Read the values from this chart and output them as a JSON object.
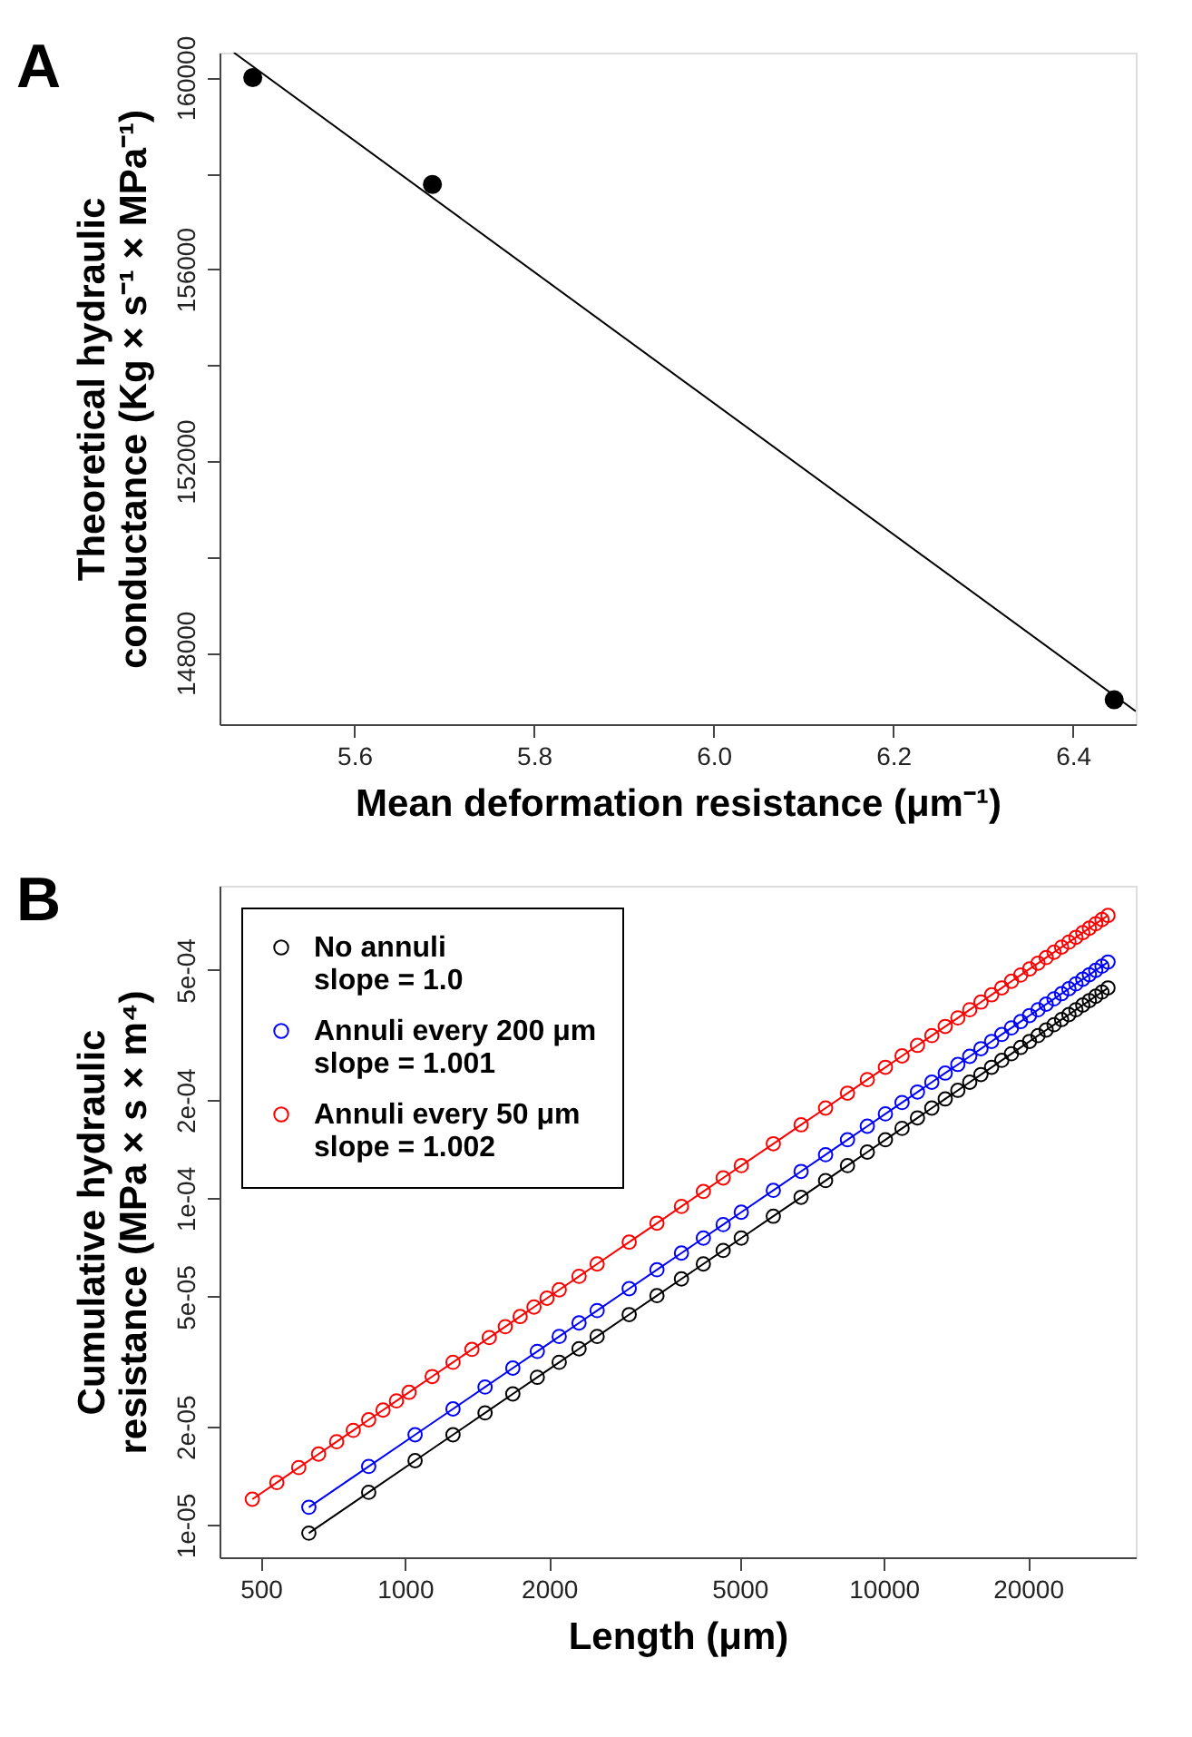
{
  "chart_data": [
    {
      "type": "scatter",
      "xlabel": "Mean deformation resistance (μm⁻¹)",
      "ylabel": "Theoretical hydraulic\nconductance  (Kg  × s⁻¹ × MPa⁻¹)",
      "annotations": [
        "A"
      ],
      "marker": "circle",
      "xlim": [
        5.45,
        6.47
      ],
      "ylim": [
        146510,
        160520
      ],
      "xticks": [
        5.6,
        5.8,
        {
          "value": 6.0,
          "label": "6.0"
        },
        6.2,
        6.4
      ],
      "yticks": [
        148000,
        {
          "value": 150000,
          "label": null
        },
        152000,
        {
          "value": 154000,
          "label": null
        },
        156000,
        {
          "value": 158000,
          "label": null
        },
        160000
      ],
      "series": [
        {
          "color": "#000000",
          "x": [
            5.487,
            5.687,
            6.446
          ],
          "values": [
            160000,
            157770,
            147020
          ]
        },
        {
          "type": "line",
          "marker": "none",
          "color": "#000000",
          "x": [
            5.466,
            6.47
          ],
          "values": [
            160520,
            146780
          ]
        }
      ]
    },
    {
      "type": "line",
      "xlabel": "Length (μm)",
      "ylabel": "Cumulative hydraulic\nresistance (MPa  × s × m⁴)",
      "annotations": [
        "B"
      ],
      "marker": "circle",
      "log": "xy",
      "legend": "top left",
      "xlim": [
        410,
        33600
      ],
      "ylim": [
        7.97e-06,
        0.000906
      ],
      "xticks": [
        500,
        1000,
        2000,
        5000,
        10000,
        20000
      ],
      "yticks": [
        {
          "value": 1e-05,
          "label": "1e-05"
        },
        {
          "value": 2e-05,
          "label": "2e-05"
        },
        {
          "value": 5e-05,
          "label": "5e-05"
        },
        {
          "value": 0.0001,
          "label": "1e-04"
        },
        {
          "value": 0.0002,
          "label": "2e-04"
        },
        {
          "value": 0.0005,
          "label": "5e-04"
        }
      ],
      "series": [
        {
          "name": "No annuli\nslope = 1.0",
          "color": "#000000",
          "x": [
            630,
            840,
            1050,
            1260,
            1470,
            1680,
            1890,
            2100,
            2310,
            2520,
            2940,
            3360,
            3780,
            4200,
            4620,
            5040,
            5880,
            6720,
            7560,
            8400,
            9240,
            10080,
            10920,
            11760,
            12600,
            13440,
            14280,
            15120,
            15960,
            16800,
            17640,
            18480,
            19320,
            20160,
            21000,
            21840,
            22680,
            23520,
            24360,
            25200,
            26040,
            26880,
            27720,
            28560,
            29400
          ],
          "values": [
            9.45e-06,
            1.26e-05,
            1.575e-05,
            1.89e-05,
            2.205e-05,
            2.52e-05,
            2.835e-05,
            3.15e-05,
            3.465e-05,
            3.78e-05,
            4.41e-05,
            5.04e-05,
            5.67e-05,
            6.3e-05,
            6.93e-05,
            7.56e-05,
            8.82e-05,
            0.0001008,
            0.0001134,
            0.000126,
            0.0001386,
            0.0001512,
            0.0001638,
            0.0001764,
            0.000189,
            0.0002016,
            0.0002142,
            0.0002268,
            0.0002394,
            0.000252,
            0.0002646,
            0.0002772,
            0.0002898,
            0.0003024,
            0.000315,
            0.0003276,
            0.0003402,
            0.0003528,
            0.0003654,
            0.000378,
            0.0003906,
            0.0004032,
            0.0004158,
            0.0004284,
            0.000441
          ]
        },
        {
          "name": "Annuli every 200 μm\nslope = 1.001",
          "color": "#0000ff",
          "x": [
            630,
            840,
            1050,
            1260,
            1470,
            1680,
            1890,
            2100,
            2310,
            2520,
            2940,
            3360,
            3780,
            4200,
            4620,
            5040,
            5880,
            6720,
            7560,
            8400,
            9240,
            10080,
            10920,
            11760,
            12600,
            13440,
            14280,
            15120,
            15960,
            16800,
            17640,
            18480,
            19320,
            20160,
            21000,
            21840,
            22680,
            23520,
            24360,
            25200,
            26040,
            26880,
            27720,
            28560,
            29400
          ],
          "values": [
            1.134e-05,
            1.512e-05,
            1.89e-05,
            2.268e-05,
            2.646e-05,
            3.024e-05,
            3.402e-05,
            3.78e-05,
            4.158e-05,
            4.536e-05,
            5.292e-05,
            6.048e-05,
            6.804e-05,
            7.56e-05,
            8.316e-05,
            9.072e-05,
            0.00010584,
            0.00012096,
            0.00013608,
            0.0001512,
            0.00016632,
            0.00018144,
            0.00019656,
            0.00021168,
            0.0002268,
            0.00024192,
            0.00025704,
            0.00027216,
            0.00028728,
            0.0003024,
            0.00031752,
            0.00033264,
            0.00034776,
            0.00036288,
            0.000378,
            0.00039312,
            0.00040824,
            0.00042336,
            0.00043848,
            0.0004536,
            0.00046872,
            0.00048384,
            0.00049896,
            0.00051408,
            0.0005292
          ]
        },
        {
          "name": "Annuli every 50 μm\nslope = 1.002",
          "color": "#ff0000",
          "x": [
            480,
            540,
            600,
            660,
            720,
            780,
            840,
            900,
            960,
            1020,
            1140,
            1260,
            1380,
            1500,
            1620,
            1740,
            1860,
            1980,
            2100,
            2310,
            2520,
            2940,
            3360,
            3780,
            4200,
            4620,
            5040,
            5880,
            6720,
            7560,
            8400,
            9240,
            10080,
            10920,
            11760,
            12600,
            13440,
            14280,
            15120,
            15960,
            16800,
            17640,
            18480,
            19320,
            20160,
            21000,
            21840,
            22680,
            23520,
            24360,
            25200,
            26040,
            26880,
            27720,
            28560,
            29400
          ],
          "values": [
            1.2e-05,
            1.35e-05,
            1.5e-05,
            1.65e-05,
            1.8e-05,
            1.95e-05,
            2.1e-05,
            2.25e-05,
            2.4e-05,
            2.55e-05,
            2.85e-05,
            3.15e-05,
            3.45e-05,
            3.75e-05,
            4.05e-05,
            4.35e-05,
            4.65e-05,
            4.95e-05,
            5.25e-05,
            5.775e-05,
            6.3e-05,
            7.35e-05,
            8.4e-05,
            9.45e-05,
            0.000105,
            0.0001155,
            0.000126,
            0.000147,
            0.000168,
            0.000189,
            0.00021,
            0.000231,
            0.000252,
            0.000273,
            0.000294,
            0.000315,
            0.000336,
            0.000357,
            0.000378,
            0.000399,
            0.00042,
            0.000441,
            0.000462,
            0.000483,
            0.000504,
            0.000525,
            0.000546,
            0.000567,
            0.000588,
            0.000609,
            0.00063,
            0.000651,
            0.000672,
            0.000693,
            0.000714,
            0.000735
          ]
        }
      ]
    }
  ]
}
